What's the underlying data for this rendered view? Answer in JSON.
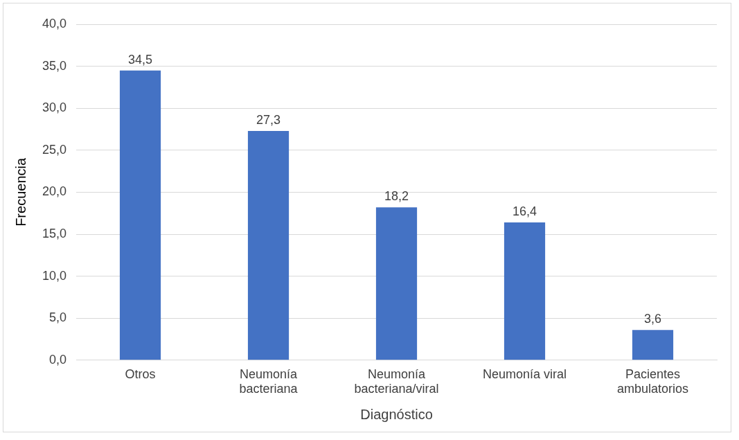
{
  "chart_data": {
    "type": "bar",
    "xlabel": "Diagnóstico",
    "ylabel": "Frecuencia",
    "categories": [
      "Otros",
      "Neumonía bacteriana",
      "Neumonía bacteriana/viral",
      "Neumonía viral",
      "Pacientes ambulatorios"
    ],
    "values": [
      34.5,
      27.3,
      18.2,
      16.4,
      3.6
    ],
    "value_labels": [
      "34,5",
      "27,3",
      "18,2",
      "16,4",
      "3,6"
    ],
    "color": "#4472c4",
    "ylim": [
      0,
      40
    ],
    "yticks": [
      {
        "value": 0,
        "label": "0,0"
      },
      {
        "value": 5,
        "label": "5,0"
      },
      {
        "value": 10,
        "label": "10,0"
      },
      {
        "value": 15,
        "label": "15,0"
      },
      {
        "value": 20,
        "label": "20,0"
      },
      {
        "value": 25,
        "label": "25,0"
      },
      {
        "value": 30,
        "label": "30,0"
      },
      {
        "value": 35,
        "label": "35,0"
      },
      {
        "value": 40,
        "label": "40,0"
      }
    ],
    "grid": "y",
    "legend": false
  }
}
